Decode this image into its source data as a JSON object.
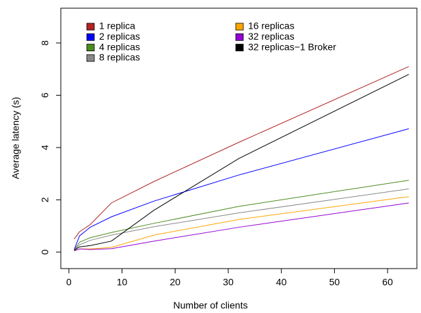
{
  "chart_data": {
    "type": "line",
    "x_label": "Number of clients",
    "y_label": "Average latency (s)",
    "x": [
      1,
      2,
      4,
      8,
      16,
      32,
      64
    ],
    "xlim": [
      -1.52,
      65.52
    ],
    "xticks": [
      0,
      10,
      20,
      30,
      40,
      50,
      60
    ],
    "ylim": [
      -0.63,
      9.33
    ],
    "yticks": [
      0,
      2,
      4,
      6,
      8
    ],
    "legend": "top",
    "series": [
      {
        "name": "1 replica",
        "color": "#b22222",
        "values": [
          0.5,
          0.78,
          1.05,
          1.88,
          2.7,
          4.2,
          7.1
        ]
      },
      {
        "name": "2 replicas",
        "color": "#0000ff",
        "values": [
          0.1,
          0.62,
          0.95,
          1.35,
          1.95,
          2.95,
          4.72
        ]
      },
      {
        "name": "4 replicas",
        "color": "#4b8b1e",
        "values": [
          0.08,
          0.38,
          0.55,
          0.75,
          1.1,
          1.75,
          2.75
        ]
      },
      {
        "name": "8 replicas",
        "color": "#888888",
        "values": [
          0.07,
          0.28,
          0.45,
          0.65,
          0.97,
          1.5,
          2.42
        ]
      },
      {
        "name": "16 replicas",
        "color": "#ffa500",
        "values": [
          0.05,
          0.12,
          0.12,
          0.18,
          0.65,
          1.25,
          2.12
        ]
      },
      {
        "name": "32 replicas",
        "color": "#9400d3",
        "values": [
          0.05,
          0.12,
          0.1,
          0.13,
          0.42,
          0.95,
          1.88
        ]
      },
      {
        "name": "32 replicas−1 Broker",
        "color": "#000000",
        "values": [
          0.07,
          0.2,
          0.25,
          0.42,
          1.6,
          3.58,
          6.8
        ]
      }
    ]
  }
}
